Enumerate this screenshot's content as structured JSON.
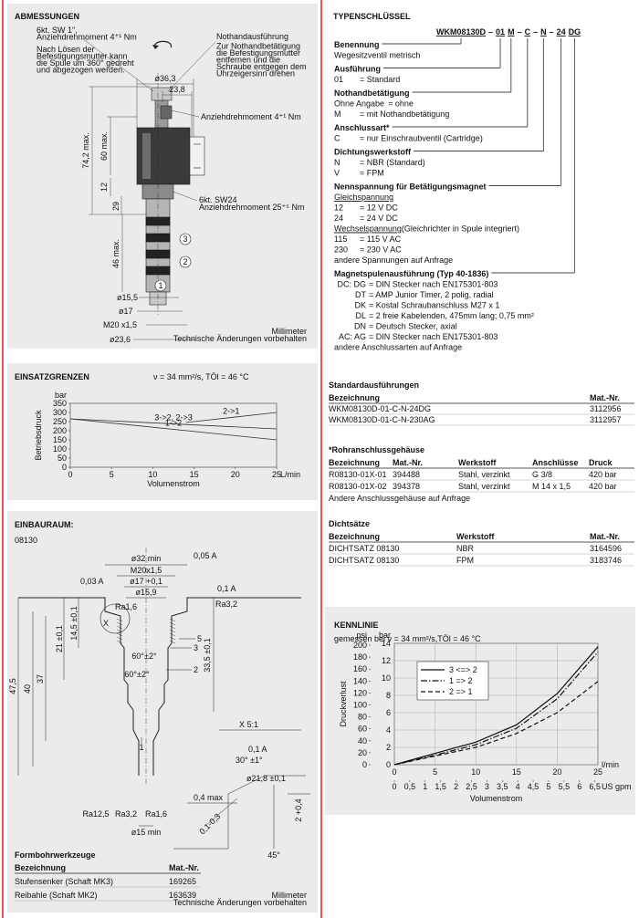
{
  "abmessungen": {
    "title": "ABMESSUNGEN",
    "note_left": [
      "6kt. SW 1\",",
      "Anziehdrehmoment 4⁺¹ Nm",
      "Nach Lösen der",
      "Befestigungsmutter kann",
      "die Spule um 360° gedreht",
      "und abgezogen werden."
    ],
    "note_right": [
      "Nothandausführung",
      "Zur Nothandbetätigung",
      "die Befestigungsmutter",
      "entfernen und die",
      "Schraube entgegen dem",
      "Uhrzeigersinn drehen"
    ],
    "torque_coil": "Anziehdrehmoment 4⁺¹ Nm",
    "hex_body": [
      "6kt. SW24",
      "Anziehdrehmoment 25⁺⁵ Nm"
    ],
    "dims": [
      "ø36,3",
      "23,8",
      "74,2 max.",
      "60 max.",
      "12",
      "29",
      "46 max.",
      "ø15,5",
      "ø17",
      "M20 x1,5",
      "ø23,6"
    ],
    "callouts": [
      "3",
      "2",
      "1"
    ],
    "footer": [
      "Millimeter",
      "Technische Änderungen vorbehalten"
    ]
  },
  "chart_data": [
    {
      "type": "line",
      "title": "EINSATZGRENZEN",
      "subtitle": "ν = 34 mm²/s, TÖl = 46 °C",
      "y_label": "Betriebsdruck",
      "y_unit": "bar",
      "x_label": "Volumenstrom",
      "x_unit": "L/min",
      "xlim": [
        0,
        25
      ],
      "ylim": [
        0,
        350
      ],
      "xticks": [
        0,
        5,
        10,
        15,
        20,
        25
      ],
      "yticks": [
        0,
        50,
        100,
        150,
        200,
        250,
        300,
        350
      ],
      "grid": false,
      "legend": "inline",
      "series": [
        {
          "name": "2->1",
          "color": "#333333",
          "style": "solid",
          "x": [
            14,
            25
          ],
          "values": [
            245,
            300
          ]
        },
        {
          "name": "3->2, 2->3",
          "color": "#333333",
          "style": "solid",
          "x": [
            0,
            25
          ],
          "values": [
            265,
            210
          ]
        },
        {
          "name": "1->2",
          "color": "#333333",
          "style": "solid",
          "x": [
            0,
            25
          ],
          "values": [
            265,
            150
          ]
        }
      ]
    },
    {
      "type": "line",
      "title": "KENNLINIE",
      "subtitle": "gemessen bei ν = 34 mm²/s,TÖl = 46 °C",
      "y_label": "Druckverlust",
      "y_unit": "bar",
      "y2_unit": "psi",
      "x_label": "Volumenstrom",
      "x_unit": "l/min",
      "x2_unit": "US gpm",
      "xlim": [
        0,
        25
      ],
      "xticks": [
        0,
        5,
        10,
        15,
        20,
        25
      ],
      "ylim": [
        0,
        14
      ],
      "yticks": [
        0,
        2,
        4,
        6,
        8,
        10,
        12,
        14
      ],
      "y2lim": [
        0,
        203
      ],
      "y2ticks": [
        0,
        20,
        40,
        60,
        80,
        100,
        120,
        140,
        160,
        180,
        200
      ],
      "x2lim": [
        0,
        6.6
      ],
      "x2ticks": [
        0,
        {
          "value": 0.5,
          "label": "0,5"
        },
        1,
        {
          "value": 1.5,
          "label": "1,5"
        },
        2,
        {
          "value": 2.5,
          "label": "2,5"
        },
        3,
        {
          "value": 3.5,
          "label": "3,5"
        },
        4,
        {
          "value": 4.5,
          "label": "4,5"
        },
        5,
        {
          "value": 5.5,
          "label": "5,5"
        },
        6,
        {
          "value": 6.5,
          "label": "6,5"
        }
      ],
      "grid": true,
      "legend": "upper left",
      "series": [
        {
          "name": "3 <=> 2",
          "color": "#111111",
          "style": "solid",
          "x": [
            0,
            5,
            10,
            15,
            20,
            25
          ],
          "values": [
            0,
            1.3,
            2.6,
            4.6,
            8.2,
            13.6
          ]
        },
        {
          "name": "1 => 2",
          "color": "#111111",
          "style": "dashdot",
          "x": [
            0,
            5,
            10,
            15,
            20,
            25
          ],
          "values": [
            0,
            1.1,
            2.3,
            4.2,
            7.6,
            13.0
          ]
        },
        {
          "name": "2 => 1",
          "color": "#111111",
          "style": "dashed",
          "x": [
            0,
            5,
            10,
            15,
            20,
            25
          ],
          "values": [
            0,
            1.0,
            2.0,
            3.6,
            6.0,
            9.6
          ]
        }
      ]
    }
  ],
  "einbauraum": {
    "title": "EINBAURAUM:",
    "subtitle": "08130",
    "dims": [
      "ø32 min",
      "M20x1,5",
      "ø17 +0,1",
      "ø15,9",
      "0,05 A",
      "0,03 A",
      "0,1 A",
      "Ra1,6",
      "Ra3,2",
      "X",
      "60°±2°",
      "60°±2°",
      "5",
      "3",
      "2",
      "1",
      "14,5 ±0,1",
      "21 ±0,1",
      "33,5 ±0,1",
      "47,5",
      "40",
      "37",
      "ø15 min",
      "X 5:1",
      "0,1 A",
      "30° ±1°",
      "ø21,8 ±0,1",
      "2 +0,4",
      "0,4 max",
      "0,1-0,3",
      "45°",
      "Ra12,5",
      "Ra3,2",
      "Ra1,6"
    ],
    "tools": {
      "title": "Formbohrwerkzeuge",
      "header": [
        "Bezeichnung",
        "Mat.-Nr."
      ],
      "rows": [
        [
          "Stufensenker (Schaft MK3)",
          "169265"
        ],
        [
          "Reibahle (Schaft MK2)",
          "163639"
        ]
      ]
    },
    "footer": [
      "Millimeter",
      "Technische Änderungen vorbehalten"
    ]
  },
  "typenschluessel": {
    "title": "TYPENSCHLÜSSEL",
    "code": [
      "WKM08130D",
      "–",
      "01",
      "M",
      "–",
      "C",
      "–",
      "N",
      "–",
      "24",
      "DG"
    ],
    "sections": [
      {
        "heading": "Benennung",
        "lines": [
          "Wegesitzventil metrisch"
        ]
      },
      {
        "heading": "Ausführung",
        "lines": [
          [
            "01",
            "= Standard"
          ]
        ]
      },
      {
        "heading": "Nothandbetätigung",
        "lines": [
          [
            "Ohne Angabe",
            "= ohne"
          ],
          [
            "M",
            "= mit Nothandbetätigung"
          ]
        ]
      },
      {
        "heading": "Anschlussart*",
        "lines": [
          [
            "C",
            "= nur Einschraubventil (Cartridge)"
          ]
        ]
      },
      {
        "heading": "Dichtungswerkstoff",
        "lines": [
          [
            "N",
            "= NBR (Standard)"
          ],
          [
            "V",
            "= FPM"
          ]
        ]
      },
      {
        "heading": "Nennspannung für Betätigungsmagnet",
        "lines": [
          {
            "sub": "Gleichspannung"
          },
          [
            "12",
            "= 12 V DC"
          ],
          [
            "24",
            "= 24 V DC"
          ],
          {
            "sub": "Wechselspannung",
            "note": " (Gleichrichter in Spule integriert)"
          },
          [
            "115",
            "= 115 V AC"
          ],
          [
            "230",
            "= 230 V AC"
          ],
          "andere Spannungen auf Anfrage"
        ]
      },
      {
        "heading": "Magnetspulenausführung (Typ 40-1836)",
        "lines": [
          [
            "DC: DG",
            "= DIN Stecker nach EN175301-803"
          ],
          [
            "DT",
            "= AMP Junior Timer, 2 polig, radial"
          ],
          [
            "DK",
            "= Kostal Schraubanschluss M27 x 1"
          ],
          [
            "DL",
            "= 2 freie Kabelenden, 475mm lang; 0,75 mm²"
          ],
          [
            "DN",
            "= Deutsch Stecker, axial"
          ],
          [
            "AC: AG",
            "= DIN Stecker nach EN175301-803"
          ],
          "andere Anschlussarten auf Anfrage"
        ]
      }
    ]
  },
  "standard": {
    "title": "Standardausführungen",
    "header": [
      "Bezeichnung",
      "Mat.-Nr."
    ],
    "rows": [
      [
        "WKM08130D-01-C-N-24DG",
        "3112956"
      ],
      [
        "WKM08130D-01-C-N-230AG",
        "3112957"
      ]
    ]
  },
  "rohranschluss": {
    "title": "*Rohranschlussgehäuse",
    "header": [
      "Bezeichnung",
      "Mat.-Nr.",
      "Werkstoff",
      "Anschlüsse",
      "Druck"
    ],
    "rows": [
      [
        "R08130-01X-01",
        "394488",
        "Stahl, verzinkt",
        "G 3/8",
        "420 bar"
      ],
      [
        "R08130-01X-02",
        "394378",
        "Stahl, verzinkt",
        "M 14 x 1,5",
        "420 bar"
      ]
    ],
    "note": "Andere Anschlussgehäuse auf Anfrage"
  },
  "dichtsaetze": {
    "title": "Dichtsätze",
    "header": [
      "Bezeichnung",
      "Werkstoff",
      "Mat.-Nr."
    ],
    "rows": [
      [
        "DICHTSATZ 08130",
        "NBR",
        "3164596"
      ],
      [
        "DICHTSATZ 08130",
        "FPM",
        "3183746"
      ]
    ]
  }
}
